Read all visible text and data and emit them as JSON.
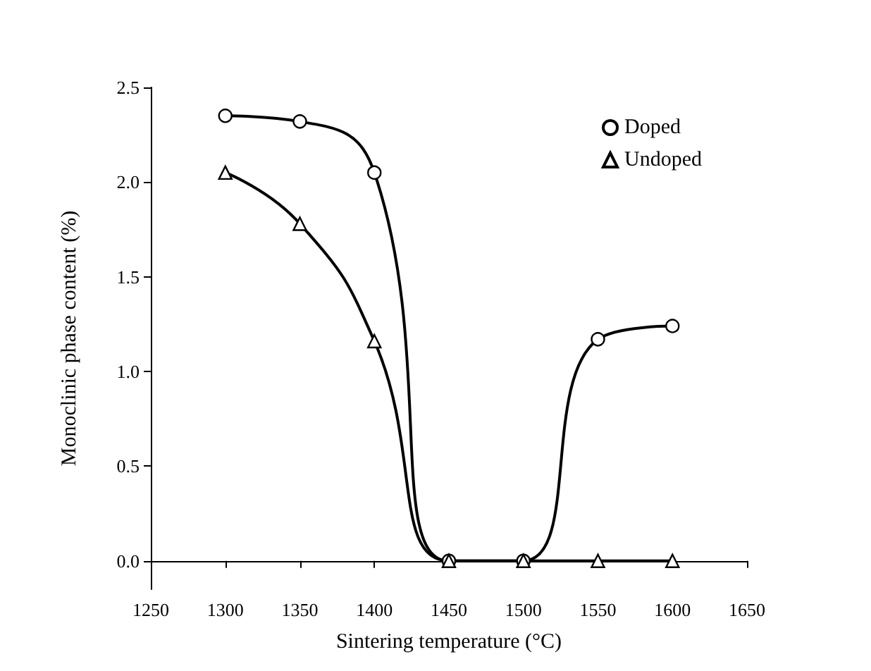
{
  "chart_data": {
    "type": "line",
    "xlabel": "Sintering temperature (°C)",
    "ylabel": "Monoclinic phase content (%)",
    "x": [
      1300,
      1350,
      1400,
      1450,
      1500,
      1550,
      1600
    ],
    "series": [
      {
        "name": "Doped",
        "color": "#000000",
        "marker": "circle",
        "values": [
          2.35,
          2.32,
          2.05,
          0.0,
          0.0,
          1.17,
          1.24
        ]
      },
      {
        "name": "Undoped",
        "color": "#000000",
        "marker": "triangle",
        "values": [
          2.05,
          1.78,
          1.16,
          0.0,
          0.0,
          0.0,
          0.0
        ]
      }
    ],
    "xlim": [
      1250,
      1650
    ],
    "xticks": [
      1250,
      1300,
      1350,
      1400,
      1450,
      1500,
      1550,
      1600,
      1650
    ],
    "ylim": [
      -0.15,
      2.5
    ],
    "yticks": [
      {
        "value": 0,
        "label": "0.0"
      },
      0.5,
      {
        "value": 1,
        "label": "1.0"
      },
      1.5,
      {
        "value": 2,
        "label": "2.0"
      },
      2.5
    ],
    "grid": false,
    "legend": "top right"
  }
}
